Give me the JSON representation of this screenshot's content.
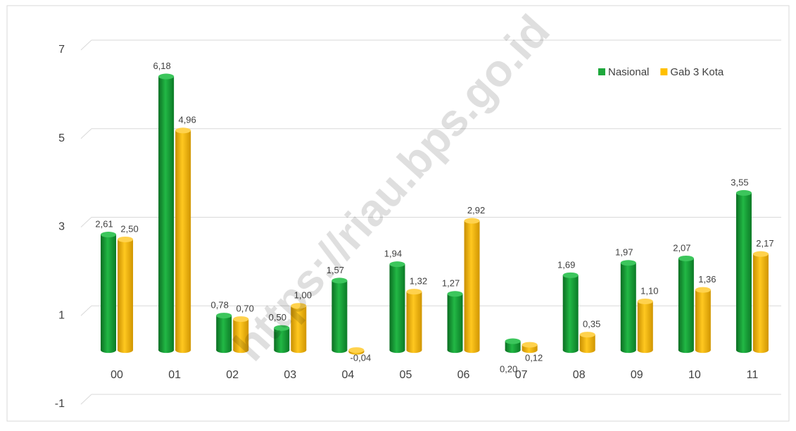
{
  "chart_data": {
    "type": "bar",
    "watermark": "https://riau.bps.go.id",
    "categories": [
      "00",
      "01",
      "02",
      "03",
      "04",
      "05",
      "06",
      "07",
      "08",
      "09",
      "10",
      "11"
    ],
    "series": [
      {
        "name": "Nasional",
        "color": "#1ea83c",
        "values": [
          2.61,
          6.18,
          0.78,
          0.5,
          1.57,
          1.94,
          1.27,
          0.2,
          1.69,
          1.97,
          2.07,
          3.55
        ],
        "value_labels": [
          "2,61",
          "6,18",
          "0,78",
          "0,50",
          "1,57",
          "1,94",
          "1,27",
          "0,20",
          "1,69",
          "1,97",
          "2,07",
          "3,55"
        ]
      },
      {
        "name": "Gab 3 Kota",
        "color": "#ffc000",
        "values": [
          2.5,
          4.96,
          0.7,
          1.0,
          -0.04,
          1.32,
          2.92,
          0.12,
          0.35,
          1.1,
          1.36,
          2.17
        ],
        "value_labels": [
          "2,50",
          "4,96",
          "0,70",
          "1,00",
          "-0,04",
          "1,32",
          "2,92",
          "0,12",
          "0,35",
          "1,10",
          "1,36",
          "2,17"
        ]
      }
    ],
    "ylim": [
      -1,
      7
    ],
    "yticks": [
      -1,
      1,
      3,
      5,
      7
    ],
    "grid": true,
    "legend": "top-right"
  }
}
